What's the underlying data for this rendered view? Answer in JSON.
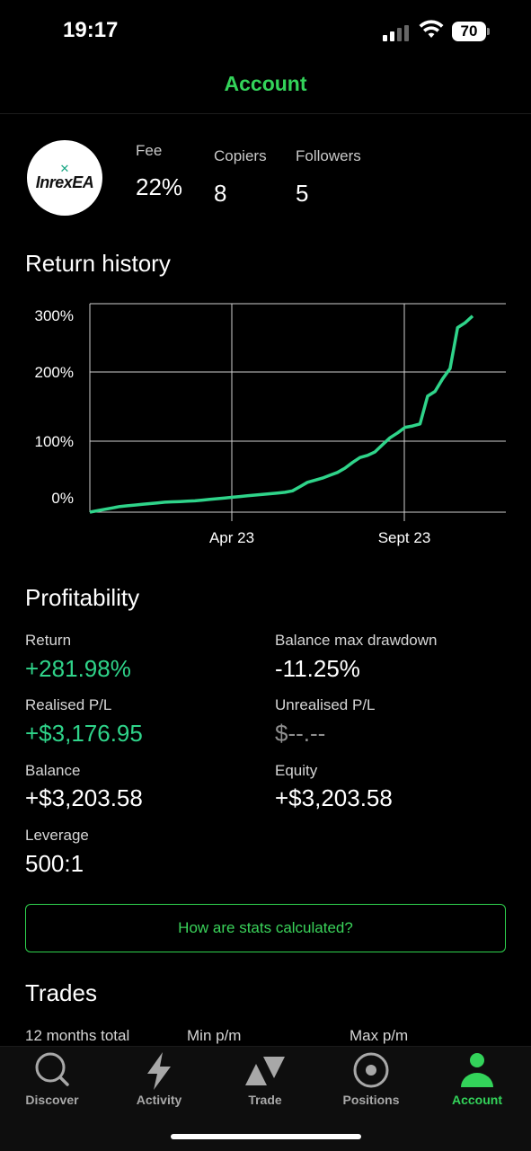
{
  "status_bar": {
    "time": "19:17",
    "battery": "70"
  },
  "header": {
    "title": "Account"
  },
  "profile": {
    "logo_text": "InrexEA",
    "stats": [
      {
        "label": "Fee",
        "value": "22%"
      },
      {
        "label": "Copiers",
        "value": "8"
      },
      {
        "label": "Followers",
        "value": "5"
      }
    ]
  },
  "return_history": {
    "title": "Return history"
  },
  "chart_data": {
    "type": "line",
    "title": "Return history",
    "xlabel": "",
    "ylabel": "",
    "x_ticks": [
      "Apr 23",
      "Sept 23"
    ],
    "y_ticks": [
      "0%",
      "100%",
      "200%",
      "300%"
    ],
    "ylim": [
      0,
      300
    ],
    "grid": true,
    "line_color": "#2fd48a",
    "series": [
      {
        "values": [
          0,
          2,
          4,
          6,
          8,
          9,
          10,
          11,
          12,
          13,
          14,
          14.5,
          15,
          15.5,
          16,
          17,
          18,
          19,
          20,
          21,
          22,
          23,
          24,
          25,
          26,
          27,
          28,
          30,
          36,
          42,
          45,
          48,
          52,
          56,
          62,
          70,
          77,
          80,
          85,
          95,
          105,
          112,
          120,
          122,
          125,
          165,
          172,
          190,
          205,
          265,
          272,
          282
        ]
      }
    ]
  },
  "profitability": {
    "title": "Profitability",
    "items": [
      {
        "label": "Return",
        "value": "+281.98%"
      },
      {
        "label": "Balance max drawdown",
        "value": "-11.25%"
      },
      {
        "label": "Realised P/L",
        "value": "+$3,176.95"
      },
      {
        "label": "Unrealised P/L",
        "value": "$--.--"
      },
      {
        "label": "Balance",
        "value": "+$3,203.58"
      },
      {
        "label": "Equity",
        "value": "+$3,203.58"
      },
      {
        "label": "Leverage",
        "value": "500:1"
      }
    ],
    "button_label": "How are stats calculated?"
  },
  "trades": {
    "title": "Trades",
    "headers": [
      "12 months total",
      "Min p/m",
      "Max p/m"
    ]
  },
  "tabbar": {
    "items": [
      {
        "label": "Discover",
        "icon": "search-icon"
      },
      {
        "label": "Activity",
        "icon": "bolt-icon"
      },
      {
        "label": "Trade",
        "icon": "trade-arrows-icon"
      },
      {
        "label": "Positions",
        "icon": "target-icon"
      },
      {
        "label": "Account",
        "icon": "person-icon",
        "active": true
      }
    ],
    "active_color": "#33d35a"
  }
}
